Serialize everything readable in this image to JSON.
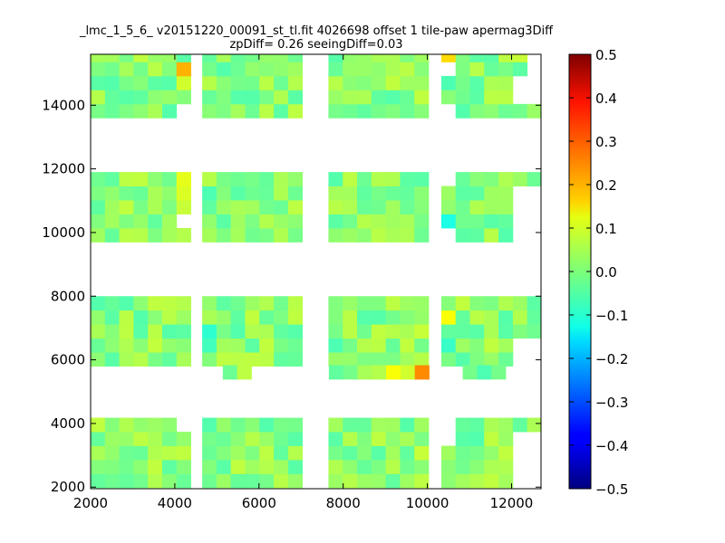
{
  "chart_data": {
    "type": "heatmap",
    "title": "_lmc_1_5_6_ v20151220_00091_st_tl.fit 4026698 offset 1 tile-paw apermag3Diff",
    "subtitle": "zpDiff= 0.26 seeingDiff=0.03",
    "xlabel": "",
    "ylabel": "",
    "xlim": [
      2000,
      12700
    ],
    "ylim": [
      1950,
      15600
    ],
    "x_ticks": [
      2000,
      4000,
      6000,
      8000,
      10000,
      12000
    ],
    "y_ticks": [
      2000,
      4000,
      6000,
      8000,
      10000,
      12000,
      14000
    ],
    "colorbar": {
      "colormap": "jet",
      "vmin": -0.5,
      "vmax": 0.5,
      "ticks": [
        0.5,
        0.4,
        0.3,
        0.2,
        0.1,
        0.0,
        -0.1,
        -0.2,
        -0.3,
        -0.4,
        -0.5
      ],
      "tick_labels": [
        "0.5",
        "0.4",
        "0.3",
        "0.2",
        "0.1",
        "0.0",
        "−0.1",
        "−0.2",
        "−0.3",
        "−0.4",
        "−0.5"
      ]
    },
    "cell_size": [
      340,
      440
    ],
    "column_groups": [
      {
        "x0": 2000,
        "x1": 4300
      },
      {
        "x0": 4650,
        "x1": 6970
      },
      {
        "x0": 7650,
        "x1": 9990
      },
      {
        "x0": 10330,
        "x1": 12700
      }
    ],
    "row_groups": [
      {
        "y0": 1980,
        "y1": 4090
      },
      {
        "y0": 5800,
        "y1": 7900
      },
      {
        "y0": 9700,
        "y1": 11800
      },
      {
        "y0": 13600,
        "y1": 15650
      }
    ],
    "gaps": [
      {
        "x0": 3950,
        "x1": 4300,
        "y0": 3660,
        "y1": 4090
      },
      {
        "x0": 3950,
        "x1": 4300,
        "y0": 9970,
        "y1": 10400
      },
      {
        "x0": 3950,
        "x1": 4300,
        "y0": 13600,
        "y1": 14000
      },
      {
        "x0": 10330,
        "x1": 10680,
        "y0": 3200,
        "y1": 4090
      },
      {
        "x0": 10330,
        "x1": 10680,
        "y0": 9700,
        "y1": 10030
      },
      {
        "x0": 10330,
        "x1": 10680,
        "y0": 11300,
        "y1": 11800
      },
      {
        "x0": 10330,
        "x1": 10680,
        "y0": 13600,
        "y1": 14000
      },
      {
        "x0": 10330,
        "x1": 10680,
        "y0": 14850,
        "y1": 15300
      },
      {
        "x0": 12000,
        "x1": 12700,
        "y0": 1980,
        "y1": 3700
      },
      {
        "x0": 12000,
        "x1": 12700,
        "y0": 5800,
        "y1": 6800
      },
      {
        "x0": 12000,
        "x1": 12700,
        "y0": 9700,
        "y1": 11300
      },
      {
        "x0": 12000,
        "x1": 12700,
        "y0": 13850,
        "y1": 15100
      },
      {
        "x0": 12330,
        "x1": 12700,
        "y0": 15100,
        "y1": 15650
      }
    ],
    "extra_cells": [
      {
        "x": 5310,
        "y": 5610,
        "v": -0.02
      },
      {
        "x": 5650,
        "y": 5610,
        "v": 0.06
      },
      {
        "x": 7830,
        "y": 5610,
        "v": -0.03
      },
      {
        "x": 8170,
        "y": 5610,
        "v": -0.01
      },
      {
        "x": 8510,
        "y": 5610,
        "v": 0.04
      },
      {
        "x": 8850,
        "y": 5610,
        "v": 0.05
      },
      {
        "x": 9190,
        "y": 5610,
        "v": 0.12
      },
      {
        "x": 9530,
        "y": 5610,
        "v": 0.08
      },
      {
        "x": 9870,
        "y": 5610,
        "v": 0.24
      },
      {
        "x": 11010,
        "y": 5610,
        "v": -0.01
      },
      {
        "x": 11350,
        "y": 5610,
        "v": -0.05
      },
      {
        "x": 11690,
        "y": 5610,
        "v": -0.01
      }
    ],
    "highlights": [
      {
        "x": 4120,
        "y": 15410,
        "v": 0.17
      },
      {
        "x": 4120,
        "y": 14980,
        "v": 0.2
      },
      {
        "x": 4120,
        "y": 14540,
        "v": 0.08
      },
      {
        "x": 4120,
        "y": 11590,
        "v": 0.1
      },
      {
        "x": 4120,
        "y": 11160,
        "v": 0.09
      },
      {
        "x": 4120,
        "y": 10720,
        "v": 0.07
      },
      {
        "x": 4120,
        "y": 9870,
        "v": 0.05
      },
      {
        "x": 4120,
        "y": 6150,
        "v": 0.04
      },
      {
        "x": 4120,
        "y": 2810,
        "v": 0.07
      },
      {
        "x": 4120,
        "y": 2370,
        "v": 0.09
      },
      {
        "x": 4820,
        "y": 7050,
        "v": -0.08
      },
      {
        "x": 4820,
        "y": 6600,
        "v": -0.06
      },
      {
        "x": 4820,
        "y": 11160,
        "v": -0.05
      },
      {
        "x": 10500,
        "y": 15410,
        "v": 0.16
      },
      {
        "x": 10500,
        "y": 14540,
        "v": -0.05
      },
      {
        "x": 10500,
        "y": 10300,
        "v": -0.1
      },
      {
        "x": 10500,
        "y": 7480,
        "v": 0.12
      },
      {
        "x": 10500,
        "y": 6950,
        "v": -0.03
      },
      {
        "x": 10500,
        "y": 6380,
        "v": -0.07
      },
      {
        "x": 12170,
        "y": 15410,
        "v": 0.07
      },
      {
        "x": 9020,
        "y": 6600,
        "v": 0.05
      },
      {
        "x": 9870,
        "y": 6950,
        "v": 0.07
      },
      {
        "x": 7830,
        "y": 6380,
        "v": -0.05
      },
      {
        "x": 9870,
        "y": 2370,
        "v": 0.06
      },
      {
        "x": 9870,
        "y": 3230,
        "v": 0.07
      },
      {
        "x": 6850,
        "y": 3230,
        "v": 0.05
      },
      {
        "x": 6850,
        "y": 14540,
        "v": 0.05
      },
      {
        "x": 11690,
        "y": 6600,
        "v": -0.06
      },
      {
        "x": 11690,
        "y": 10720,
        "v": 0.03
      }
    ]
  }
}
